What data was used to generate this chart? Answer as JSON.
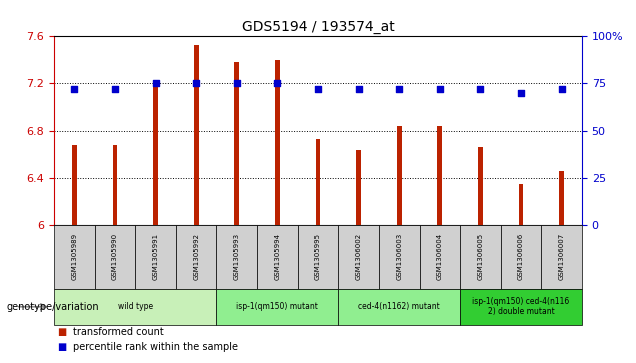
{
  "title": "GDS5194 / 193574_at",
  "samples": [
    "GSM1305989",
    "GSM1305990",
    "GSM1305991",
    "GSM1305992",
    "GSM1305993",
    "GSM1305994",
    "GSM1305995",
    "GSM1306002",
    "GSM1306003",
    "GSM1306004",
    "GSM1306005",
    "GSM1306006",
    "GSM1306007"
  ],
  "bar_values": [
    6.68,
    6.68,
    7.22,
    7.53,
    7.38,
    7.4,
    6.73,
    6.64,
    6.84,
    6.84,
    6.66,
    6.35,
    6.46
  ],
  "dot_values": [
    72,
    72,
    75,
    75,
    75,
    75,
    72,
    72,
    72,
    72,
    72,
    70,
    72
  ],
  "bar_bottom": 6.0,
  "ylim": [
    6.0,
    7.6
  ],
  "y2lim": [
    0,
    100
  ],
  "yticks": [
    6.0,
    6.4,
    6.8,
    7.2,
    7.6
  ],
  "y2ticks": [
    0,
    25,
    50,
    75,
    100
  ],
  "groups": [
    {
      "label": "wild type",
      "start": 0,
      "end": 3,
      "color": "#c8f0b8"
    },
    {
      "label": "isp-1(qm150) mutant",
      "start": 4,
      "end": 6,
      "color": "#90ee90"
    },
    {
      "label": "ced-4(n1162) mutant",
      "start": 7,
      "end": 9,
      "color": "#90ee90"
    },
    {
      "label": "isp-1(qm150) ced-4(n116\n2) double mutant",
      "start": 10,
      "end": 12,
      "color": "#32cd32"
    }
  ],
  "bar_color": "#bb2200",
  "dot_color": "#0000cc",
  "tick_color_left": "#cc0000",
  "tick_color_right": "#0000cc",
  "label_genotype": "genotype/variation",
  "legend_bar": "transformed count",
  "legend_dot": "percentile rank within the sample",
  "table_bg": "#d0d0d0"
}
